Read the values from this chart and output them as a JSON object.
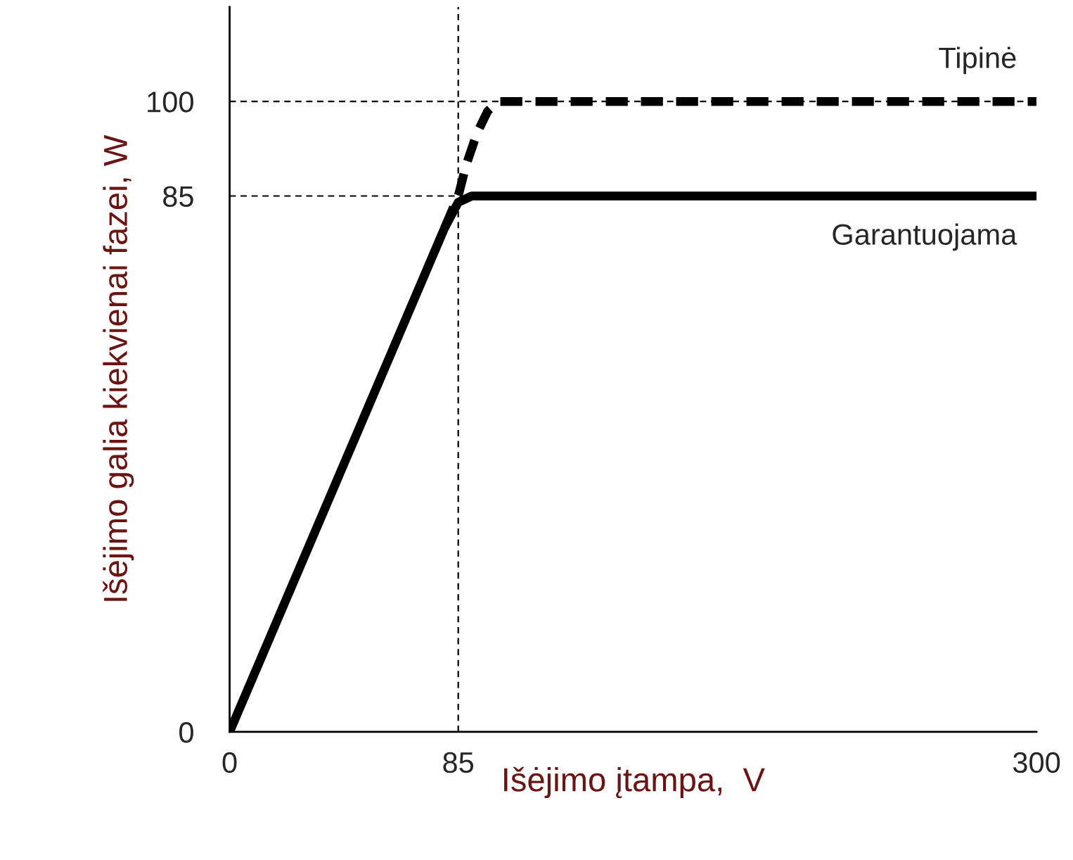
{
  "chart_data": {
    "type": "line",
    "xlabel": "Išėjimo įtampa,  V",
    "ylabel": "Išėjimo galia kiekvienai fazei, W",
    "xlim": [
      0,
      300
    ],
    "ylim": [
      0,
      115
    ],
    "xticks": [
      0,
      85,
      300
    ],
    "yticks": [
      0,
      85,
      100
    ],
    "grid": false,
    "legend": false,
    "marker": "none",
    "series": [
      {
        "name": "Tipinė",
        "color": "#000000",
        "line_style": "dashed",
        "x": [
          80,
          85,
          88,
          92,
          96,
          100,
          300
        ],
        "values": [
          80,
          85,
          90,
          95,
          98.5,
          100,
          100
        ]
      },
      {
        "name": "Garantuojama",
        "color": "#000000",
        "line_style": "solid",
        "x": [
          0,
          80,
          85,
          90,
          95,
          300
        ],
        "values": [
          0,
          80,
          84,
          85,
          85,
          85
        ]
      }
    ],
    "ref_lines": [
      {
        "axis": "x",
        "value": 85,
        "line_style": "dashed",
        "color": "#000000"
      },
      {
        "axis": "y",
        "value": 85,
        "line_style": "dashed",
        "color": "#000000"
      },
      {
        "axis": "y",
        "value": 100,
        "line_style": "dashed",
        "color": "#000000"
      }
    ]
  }
}
